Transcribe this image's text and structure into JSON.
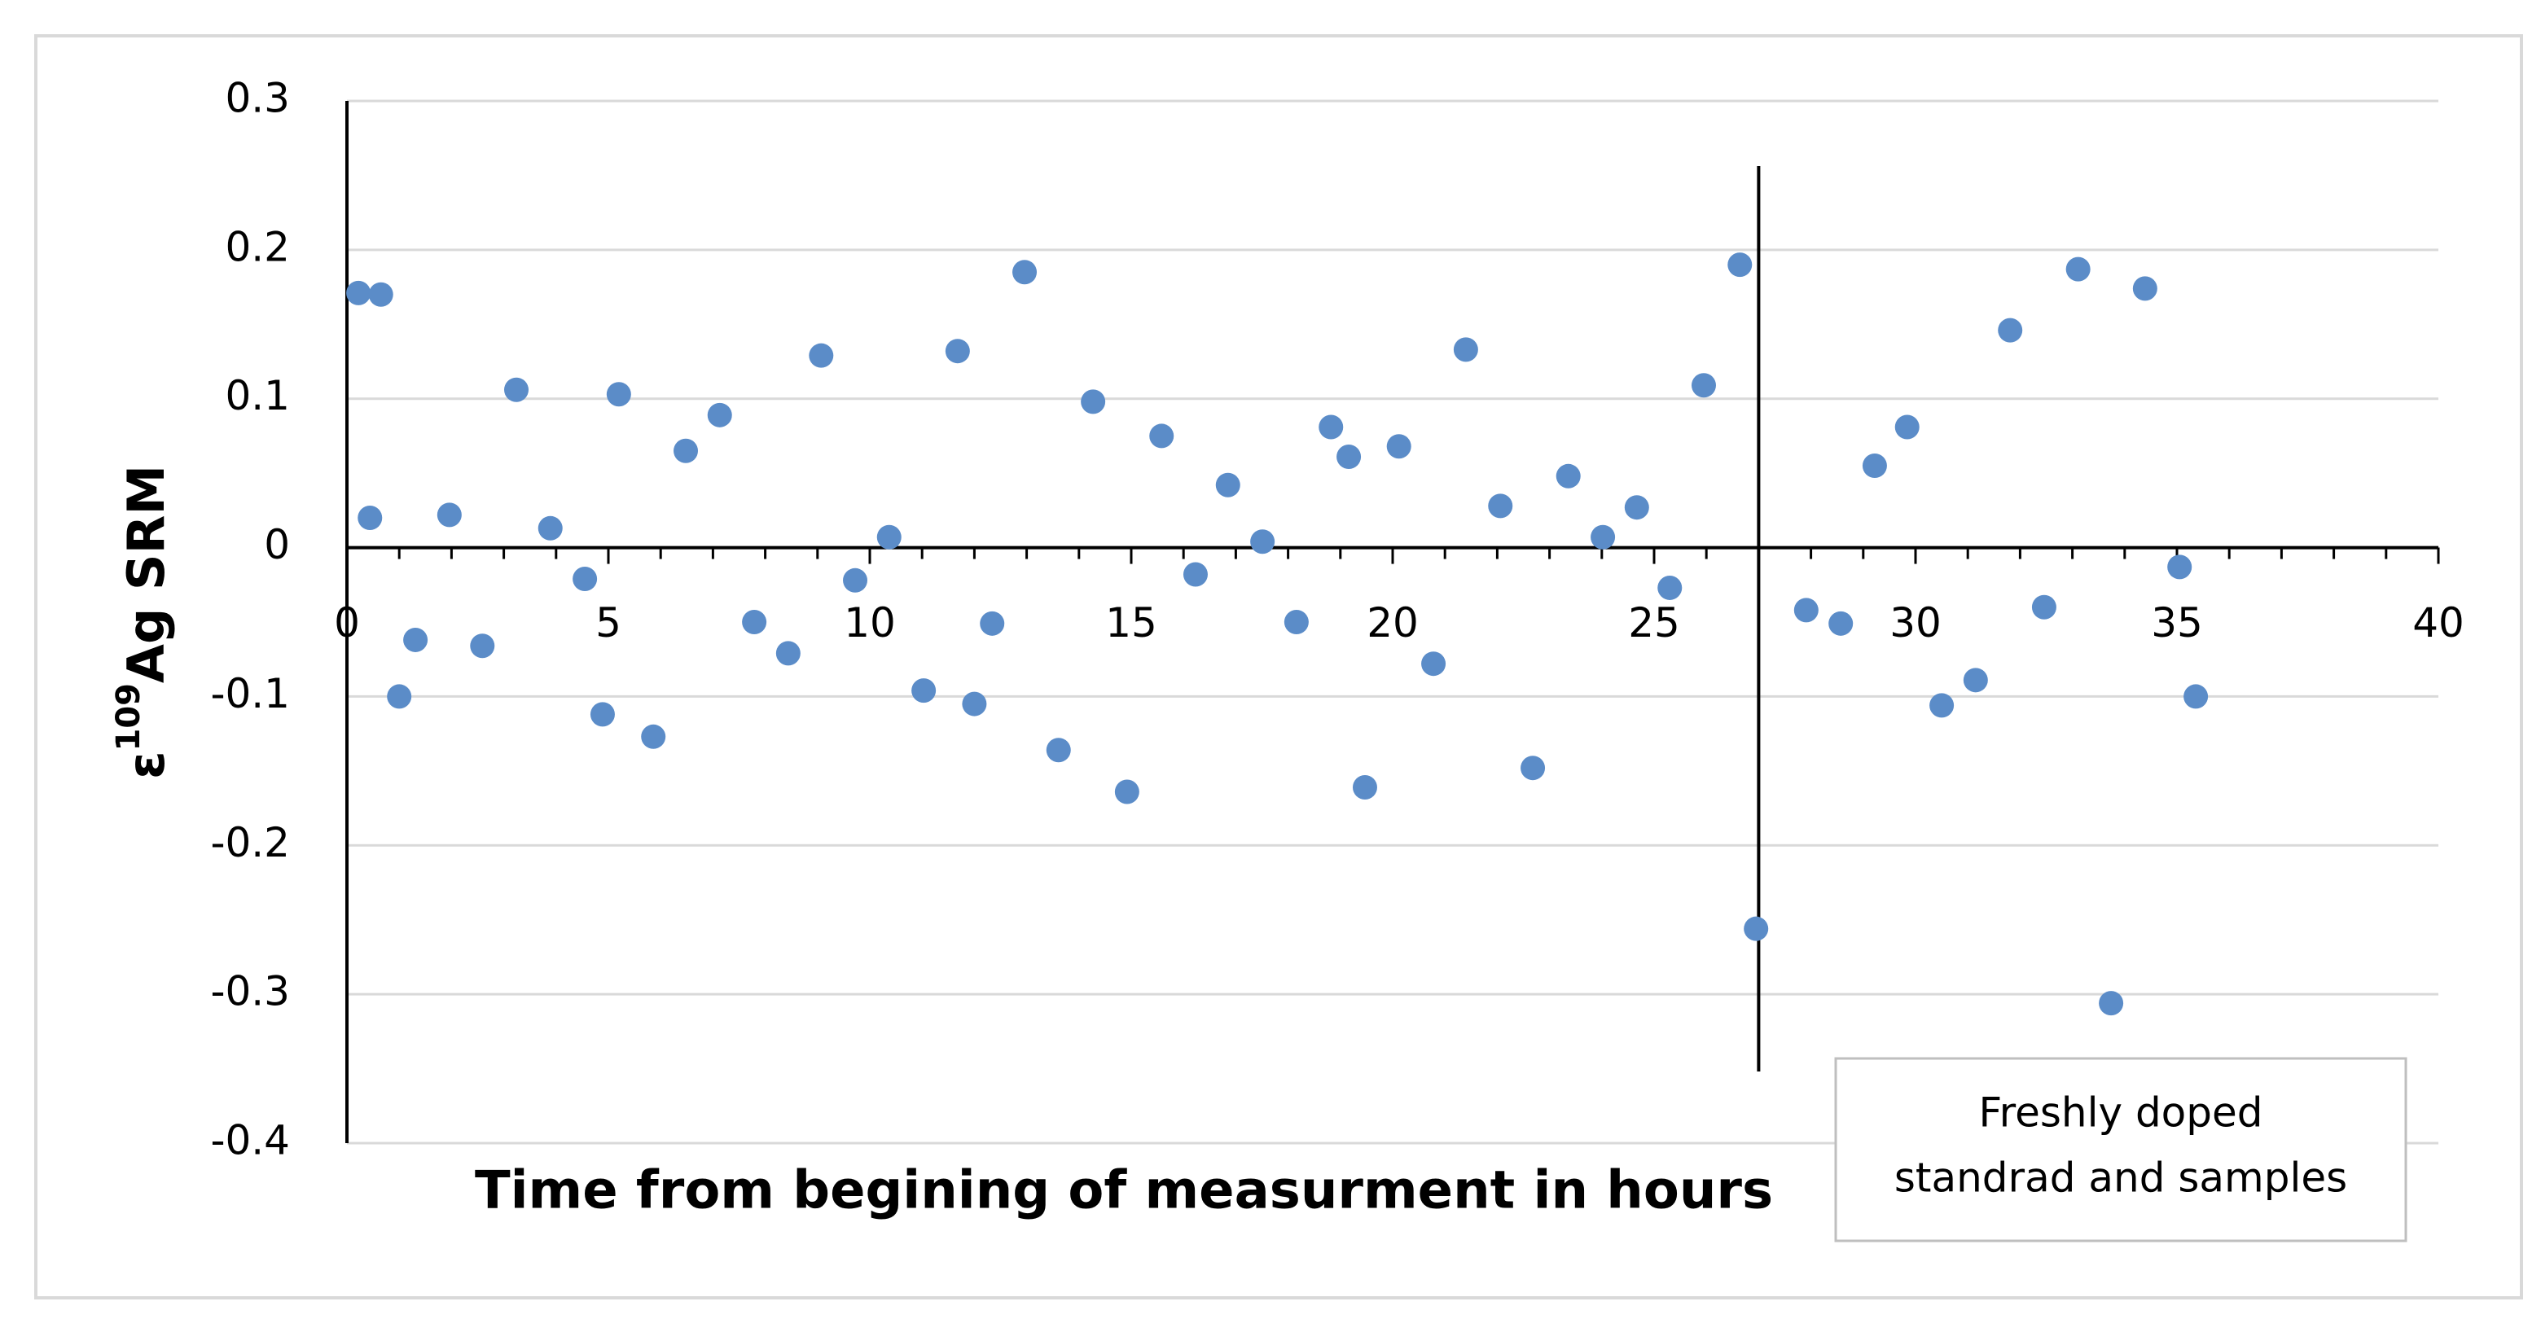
{
  "chart_data": {
    "type": "scatter",
    "x_label": "Time from begining of measurment in hours",
    "y_label": {
      "prefix": "ε",
      "superscript": "109",
      "suffix": "Ag SRM"
    },
    "xlim": [
      0,
      40
    ],
    "xticks": [
      0,
      5,
      10,
      15,
      20,
      25,
      30,
      35,
      40
    ],
    "ylim": [
      -0.4,
      0.3
    ],
    "yticks": [
      -0.4,
      -0.3,
      -0.2,
      -0.1,
      0,
      0.1,
      0.2,
      0.3
    ],
    "grid": true,
    "divider_x": 27,
    "annotation": [
      "Freshly doped",
      "standrad and samples"
    ],
    "series": [
      {
        "color": "#5b8cc8",
        "x": [
          0.22,
          0.65,
          0.44,
          1.0,
          1.31,
          1.96,
          2.59,
          3.24,
          3.89,
          4.55,
          4.89,
          5.2,
          5.86,
          6.48,
          7.13,
          7.79,
          8.44,
          9.07,
          9.72,
          10.37,
          11.03,
          11.68,
          12.0,
          12.34,
          12.96,
          13.61,
          14.27,
          14.92,
          15.58,
          16.23,
          16.85,
          17.51,
          18.16,
          18.82,
          19.16,
          19.47,
          20.12,
          20.78,
          21.4,
          22.06,
          22.68,
          23.36,
          24.02,
          24.67,
          25.3,
          25.95,
          26.64,
          26.95,
          27.91,
          28.57,
          29.22,
          29.84,
          30.5,
          31.15,
          31.81,
          32.46,
          33.11,
          33.74,
          34.39,
          35.05,
          35.36
        ],
        "values": [
          0.171,
          0.17,
          0.02,
          -0.1,
          -0.062,
          0.022,
          -0.066,
          0.106,
          0.013,
          -0.021,
          -0.112,
          0.103,
          -0.127,
          0.065,
          0.089,
          -0.05,
          -0.071,
          0.129,
          -0.022,
          0.007,
          -0.096,
          0.132,
          -0.105,
          -0.051,
          0.185,
          -0.136,
          0.098,
          -0.164,
          0.075,
          -0.018,
          0.042,
          0.004,
          -0.05,
          0.081,
          0.061,
          -0.161,
          0.068,
          -0.078,
          0.133,
          0.028,
          -0.148,
          0.048,
          0.007,
          0.027,
          -0.027,
          0.109,
          0.19,
          -0.256,
          -0.042,
          -0.051,
          0.055,
          0.081,
          -0.106,
          -0.089,
          0.146,
          -0.04,
          0.187,
          -0.306,
          0.174,
          -0.013,
          -0.1
        ]
      }
    ]
  }
}
